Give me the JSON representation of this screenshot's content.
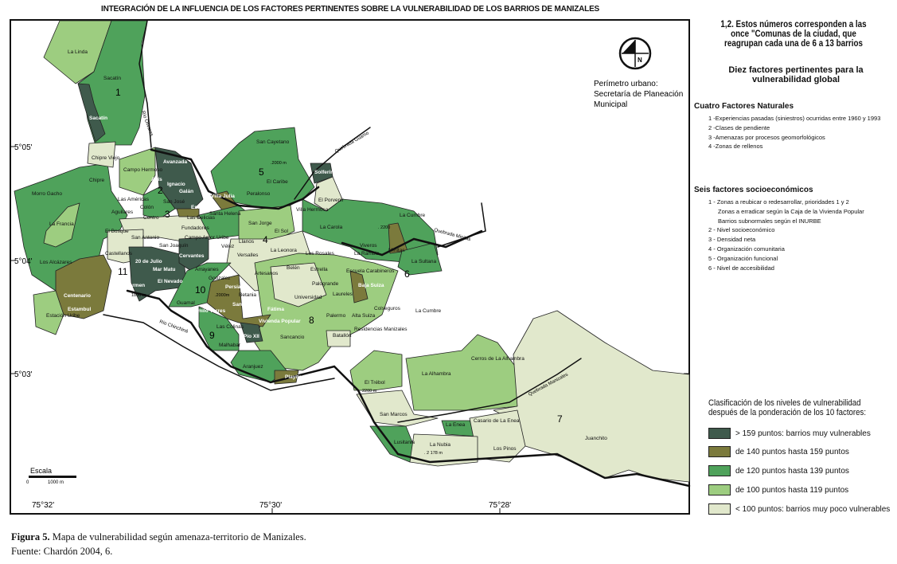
{
  "title": "INTEGRACIÓN DE LA INFLUENCIA DE LOS FACTORES PERTINENTES SOBRE LA VULNERABILIDAD DE LOS BARRIOS DE MANIZALES",
  "colors": {
    "muy_vulnerable": "#3f5a4c",
    "140_159": "#7b7a3c",
    "120_139": "#4fa25b",
    "100_119": "#9dcd80",
    "poco_vulnerable": "#e1e8cc"
  },
  "side": {
    "note": "1,2. Estos números corresponden a las once \"Comunas de la ciudad, que reagrupan cada una de 6 a 13 barrios",
    "diez": "Diez factores pertinentes para la vulnerabilidad global",
    "naturales_title": "Cuatro Factores Naturales",
    "naturales": [
      "1 -Experiencias pasadas (siniestros) ocurridas entre 1960 y 1993",
      "2 -Clases de pendiente",
      "3 -Amenazas por procesos geomorfológicos",
      "4 -Zonas de rellenos"
    ],
    "socio_title": "Seis factores socioeconómicos",
    "socio": [
      "1 - Zonas a reubicar o redesarrollar, prioridades 1 y 2",
      "Zonas a erradicar según la Caja de la Vivienda Popular",
      "Barrios subnormales según el INURBE",
      "2 - Nivel socioeconómico",
      "3 - Densidad neta",
      "4 - Organización comunitaria",
      "5 - Organización funcional",
      "6 - Nivel de accesibilidad"
    ]
  },
  "legend": {
    "title": "Clasificación de los niveles de vulnerabilidad después de la ponderación de los 10 factores:",
    "items": [
      "> 159 puntos: barrios muy vulnerables",
      "de 140 puntos hasta 159 puntos",
      "de 120 puntos hasta 139 puntos",
      "de 100 puntos hasta 119 puntos",
      "< 100 puntos: barrios muy poco vulnerables"
    ]
  },
  "map": {
    "perimetro": [
      "Perímetro urbano:",
      "Secretaría de Planeación",
      "Municipal"
    ],
    "north": "N",
    "lat": [
      "5°05'",
      "5°04'",
      "5°03'"
    ],
    "lon": [
      "75°32'",
      "75°30'",
      "75°28'"
    ],
    "scale": {
      "title": "Escala",
      "zero": "0",
      "dist": "1000 m"
    },
    "rivers": [
      "Río Olivares",
      "Quebrada Guamo",
      "Quebrada Minitas",
      "Río Chinchiná",
      "Quebrada Manizales"
    ],
    "comunas": [
      "1",
      "2",
      "3",
      "4",
      "5",
      "6",
      "7",
      "8",
      "9",
      "10",
      "11"
    ],
    "barrios": [
      "La Linda",
      "Sacatín",
      "Sacatín",
      "Chipre Viejo",
      "Chipre",
      "Campo Hermoso",
      "Morro Gacho",
      "Asís",
      "Avanzada",
      "Ignacio",
      "Galán",
      "San José",
      "Estrada",
      "Las Américas",
      "Colón",
      "Aguilares",
      "La Francia",
      "Las Delicias",
      "Centro",
      "Fundadores",
      "El Bosque",
      "San Antonio",
      "San Joaquín",
      "Campo Amor",
      "Castellanos",
      "Los Alcázares",
      "20 de Julio",
      "Mar Matu",
      "El Carmen",
      "El Nevado",
      "Cervantes",
      "Arrayanes",
      "Centenario",
      "Estambul",
      "Estación Uribe",
      "Guamal",
      "San Cayetano",
      "El Caribe",
      "Peralonso",
      "Villa Julia",
      "Santa Helena",
      "Solferino",
      "El Porvenir",
      "Villa Hermosa",
      "San Jorge",
      "El Sol",
      "La Carola",
      "Viveros",
      "Minitas",
      "La Cumbre",
      "La Sultana",
      "Uribe",
      "Llanos",
      "Vélez",
      "Versalles",
      "La Leonora",
      "Los Rosales",
      "La Rambla",
      "Gonzalez",
      "Artesanos",
      "Belén",
      "Estrella",
      "Palogrande",
      "Escuela Carabineros",
      "Persia",
      "Baja Suiza",
      "Laureles",
      "Betania",
      "Universidad",
      "Colseguros",
      "Camilo Torres",
      "San Fernan",
      "Fátima",
      "Palermo",
      "Alta Suiza",
      "Las Colinas",
      "Vivienda Popular",
      "Pío XII",
      "Residencias Manizales",
      "Batallón",
      "Malhabar",
      "Sancancio",
      "Aranjuez",
      "Playita",
      "El Trébol",
      "La Alhambra",
      "Cerros de La Alhambra",
      "San Marcos",
      "Casario de La Enea",
      "La Enea",
      "Lusitania",
      "La Nubia",
      "Los Pinos",
      "Juanchito",
      "La Cumbre"
    ],
    "elev": [
      ".2000 m",
      ". 2200",
      ".2000m",
      ". 2 178 m",
      "2200 m",
      "1800 m"
    ]
  },
  "caption": {
    "figure": "Figura 5.",
    "text": " Mapa de vulnerabilidad según amenaza-territorio de Manizales.",
    "source": "Fuente: Chardón 2004, 6."
  }
}
